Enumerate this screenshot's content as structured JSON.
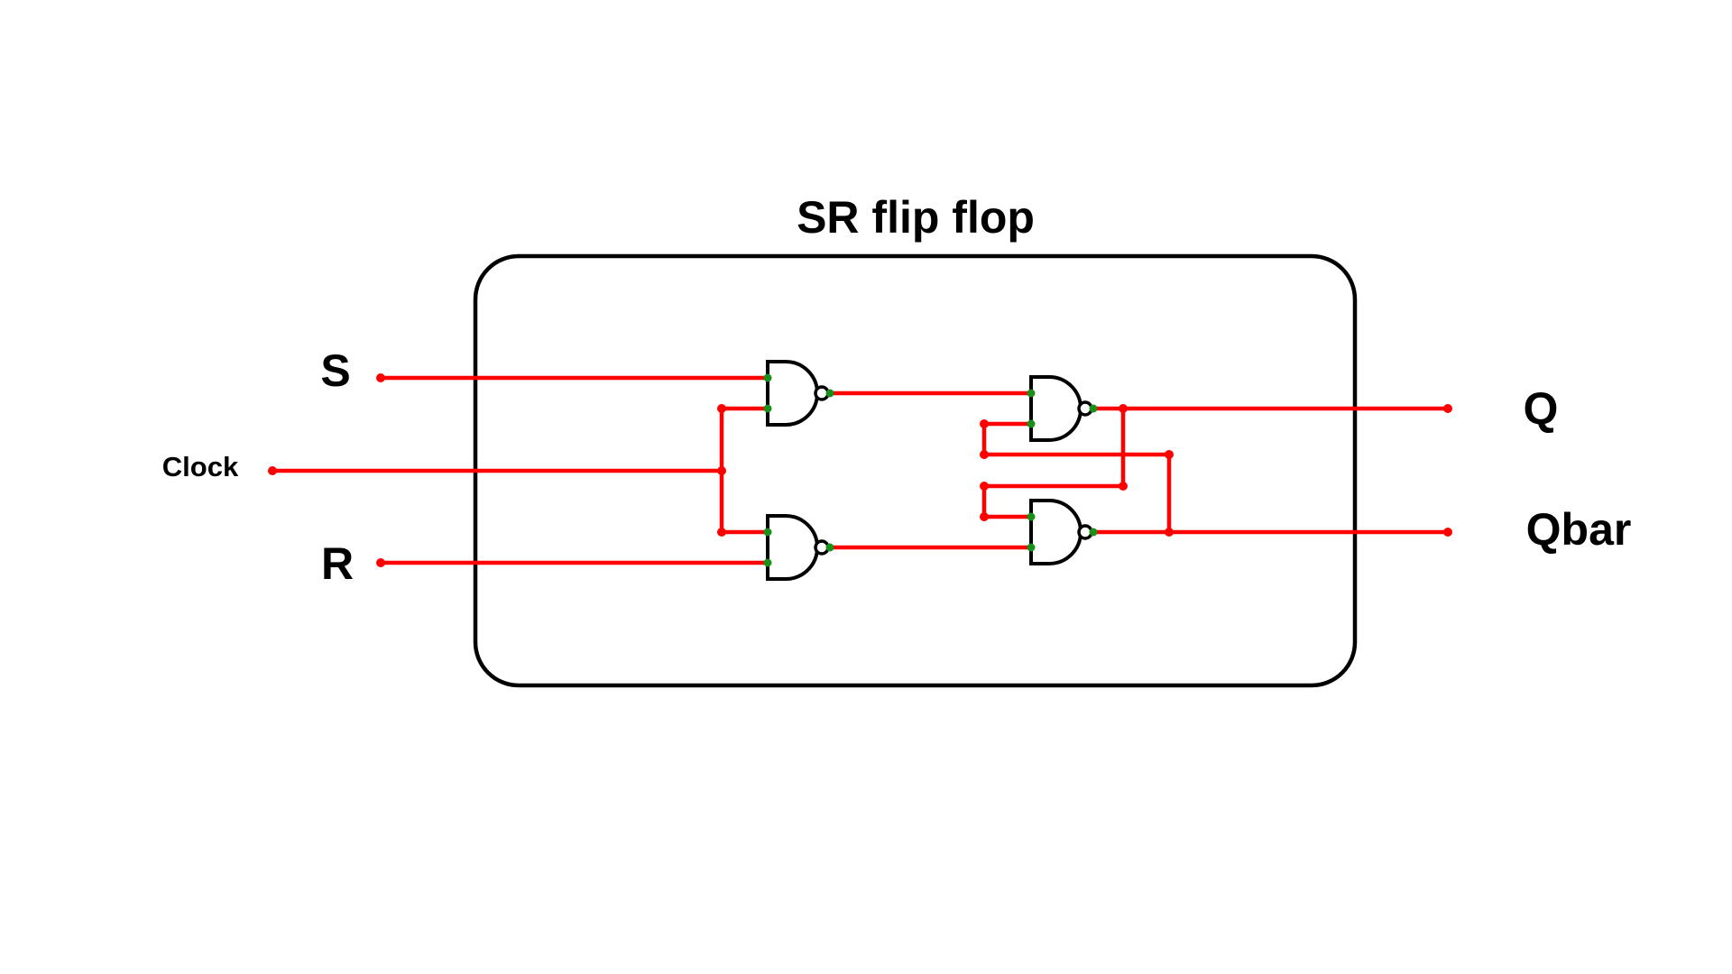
{
  "title": "SR flip flop",
  "inputs": {
    "s_label": "S",
    "clock_label": "Clock",
    "r_label": "R"
  },
  "outputs": {
    "q_label": "Q",
    "qbar_label": "Qbar"
  },
  "colors": {
    "wire": "#ff0000",
    "pin": "#1a8f1a",
    "outline": "#000000",
    "background": "#ffffff"
  }
}
